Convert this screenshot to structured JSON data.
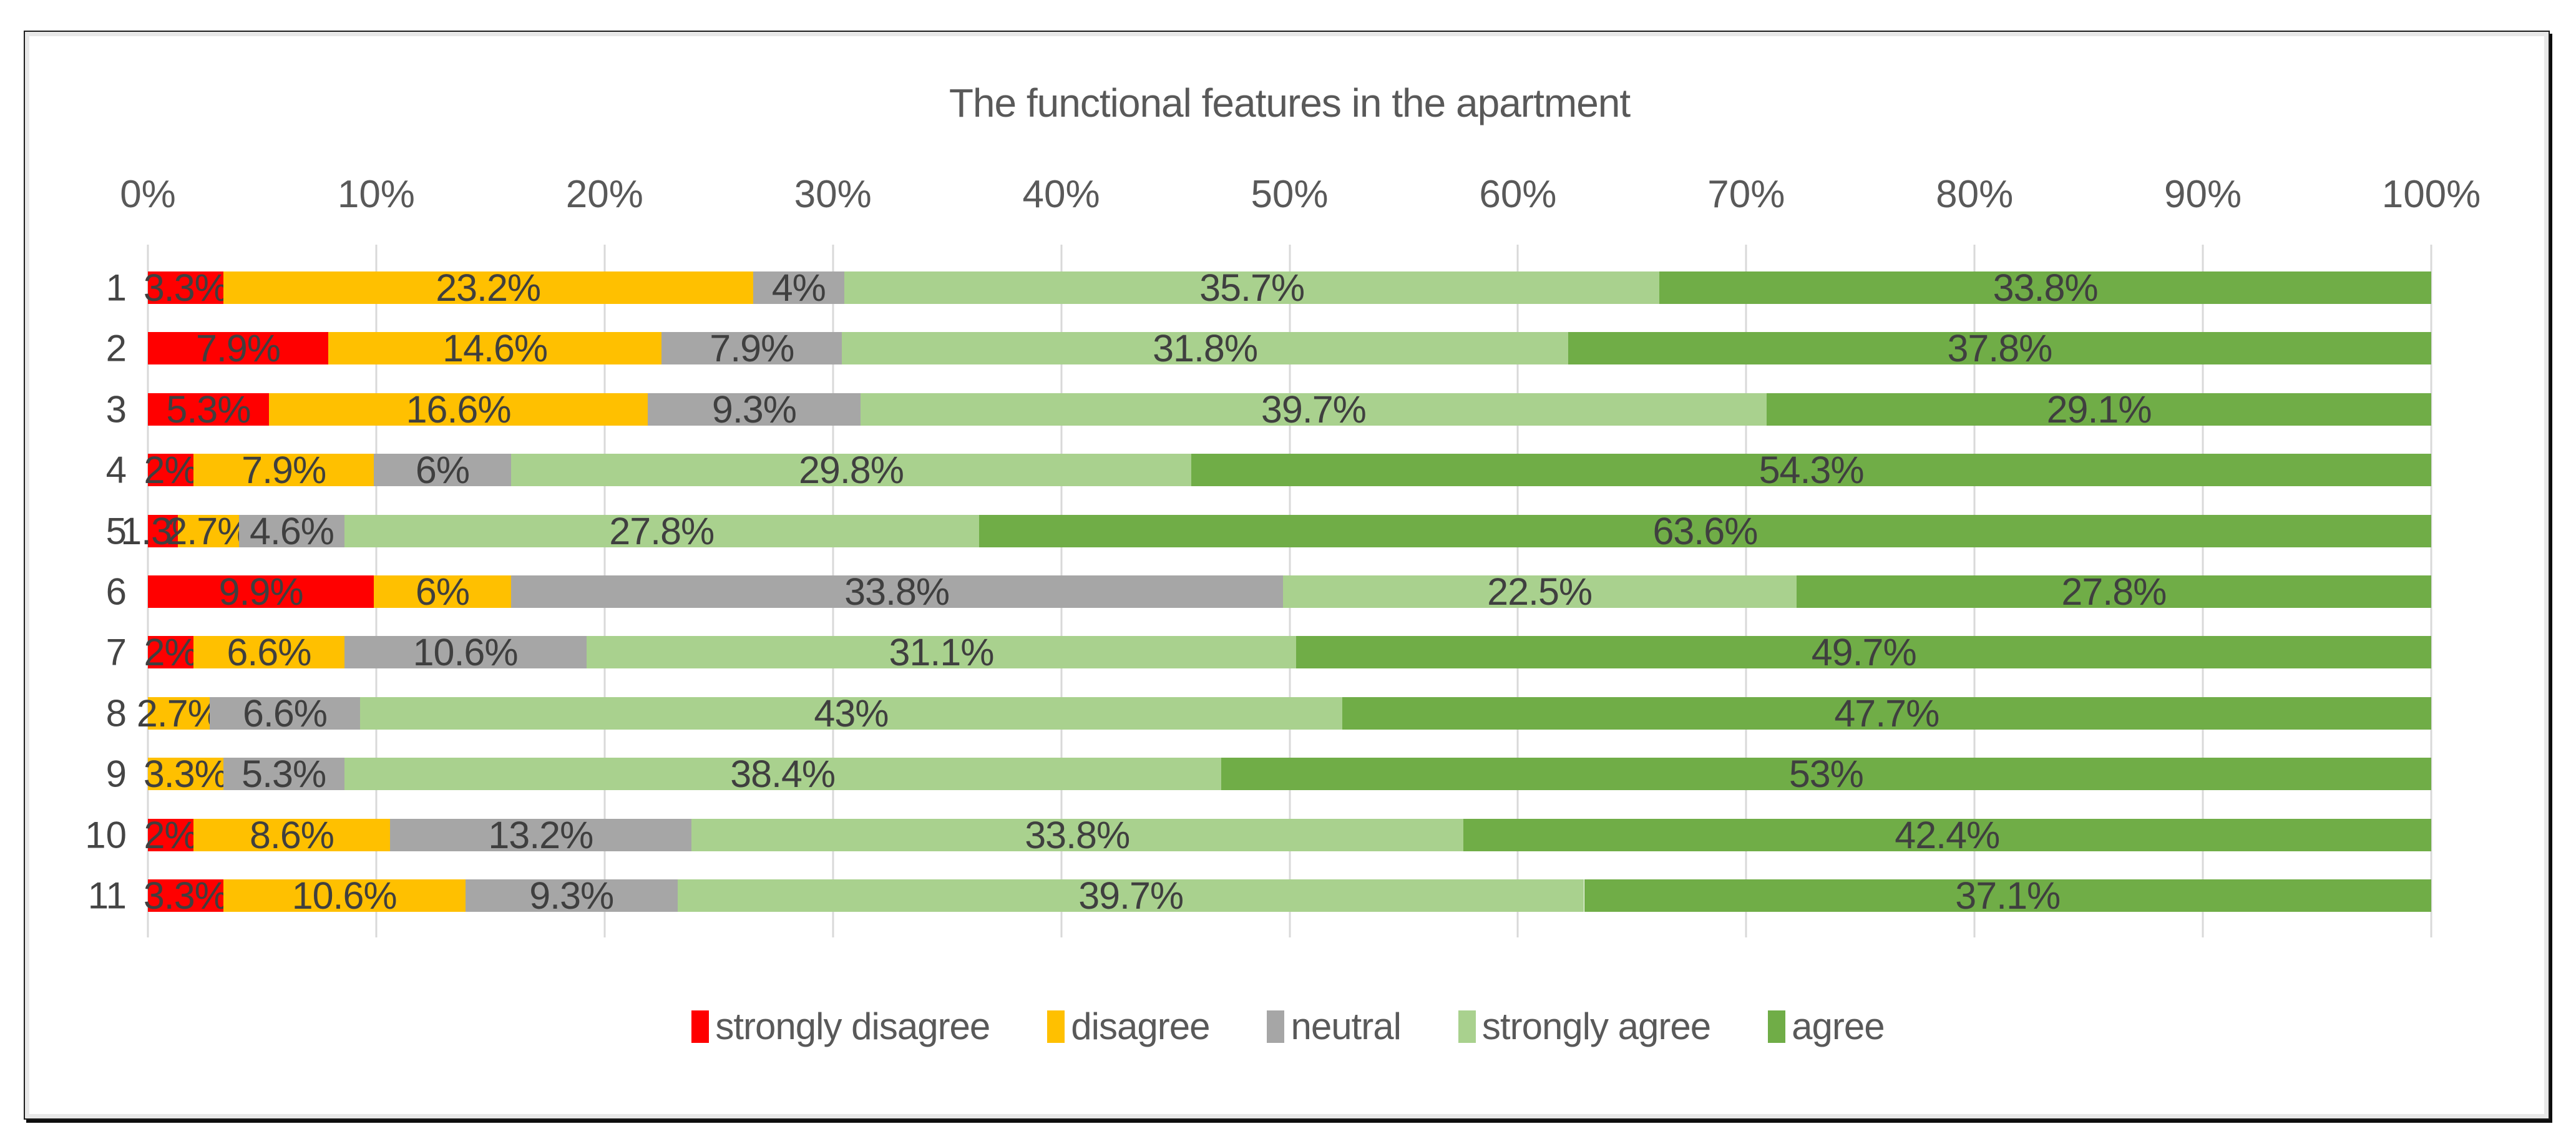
{
  "chart_data": {
    "type": "bar",
    "orientation": "horizontal-stacked",
    "title": "The functional features in the apartment",
    "xlabel": "",
    "ylabel": "",
    "xlim": [
      0,
      100
    ],
    "grid": true,
    "x_ticks": [
      "0%",
      "10%",
      "20%",
      "30%",
      "40%",
      "50%",
      "60%",
      "70%",
      "80%",
      "90%",
      "100%"
    ],
    "categories": [
      "1",
      "2",
      "3",
      "4",
      "5",
      "6",
      "7",
      "8",
      "9",
      "10",
      "11"
    ],
    "series": [
      {
        "name": "strongly disagree",
        "color": "#FF0000",
        "values": [
          3.3,
          7.9,
          5.3,
          2,
          1.3,
          9.9,
          2,
          0,
          0,
          2,
          3.3
        ]
      },
      {
        "name": "disagree",
        "color": "#FFC000",
        "values": [
          23.2,
          14.6,
          16.6,
          7.9,
          2.7,
          6,
          6.6,
          2.7,
          3.3,
          8.6,
          10.6
        ]
      },
      {
        "name": "neutral",
        "color": "#A6A6A6",
        "values": [
          4,
          7.9,
          9.3,
          6,
          4.6,
          33.8,
          10.6,
          6.6,
          5.3,
          13.2,
          9.3
        ]
      },
      {
        "name": "strongly agree",
        "color": "#A9D18E",
        "values": [
          35.7,
          31.8,
          39.7,
          29.8,
          27.8,
          22.5,
          31.1,
          43,
          38.4,
          33.8,
          39.7
        ]
      },
      {
        "name": "agree",
        "color": "#70AD47",
        "values": [
          33.8,
          37.8,
          29.1,
          54.3,
          63.6,
          27.8,
          49.7,
          47.7,
          53,
          42.4,
          37.1
        ]
      }
    ],
    "label_format": "value%",
    "legend_position": "bottom",
    "colors": {
      "gridline": "#D9D9D9",
      "title_text": "#595959",
      "axis_text": "#595959",
      "data_label_text": "#3F3F3F",
      "frame_border": "#E8E8E8",
      "frame_outline": "#1D1D1D"
    }
  }
}
